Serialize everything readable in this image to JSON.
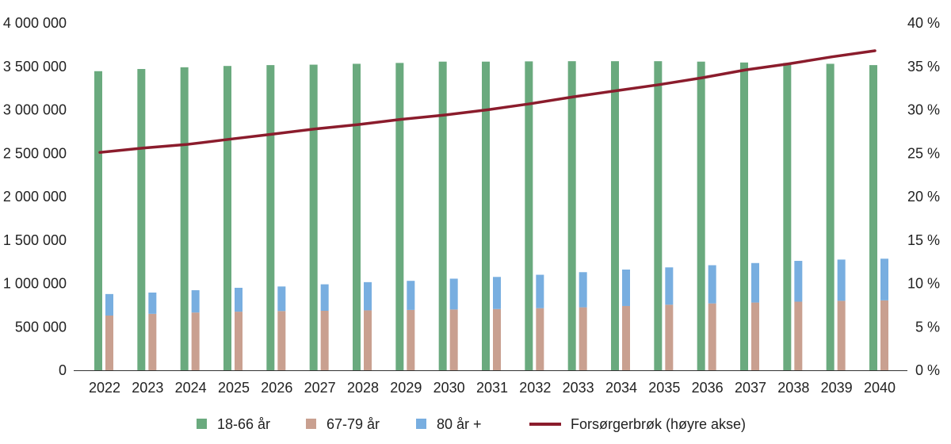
{
  "chart_data": {
    "type": "bar",
    "title": "",
    "xlabel": "",
    "ylabel": "",
    "categories": [
      "2022",
      "2023",
      "2024",
      "2025",
      "2026",
      "2027",
      "2028",
      "2029",
      "2030",
      "2031",
      "2032",
      "2033",
      "2034",
      "2035",
      "2036",
      "2037",
      "2038",
      "2039",
      "2040"
    ],
    "y_left": {
      "min": 0,
      "max": 4000000,
      "step": 500000,
      "tick_labels": [
        "0",
        "500 000",
        "1 000 000",
        "1 500 000",
        "2 000 000",
        "2 500 000",
        "3 000 000",
        "3 500 000",
        "4 000 000"
      ]
    },
    "y_right": {
      "min": 0,
      "max": 40,
      "step": 5,
      "tick_labels": [
        "0 %",
        "5 %",
        "10 %",
        "15 %",
        "20 %",
        "25 %",
        "30 %",
        "35 %",
        "40 %"
      ]
    },
    "grid": false,
    "legend_position": "bottom",
    "series": [
      {
        "name": "18-66 år",
        "type": "bar",
        "axis": "left",
        "color": "#6aaa7e",
        "values": [
          3445000,
          3470000,
          3490000,
          3505000,
          3515000,
          3520000,
          3530000,
          3540000,
          3555000,
          3555000,
          3558000,
          3560000,
          3560000,
          3560000,
          3555000,
          3545000,
          3540000,
          3530000,
          3515000
        ]
      },
      {
        "name": "67-79 år",
        "type": "stacked-bar",
        "stack": "elderly",
        "axis": "left",
        "color": "#c9a090",
        "values": [
          630000,
          650000,
          665000,
          675000,
          682000,
          685000,
          690000,
          695000,
          700000,
          705000,
          715000,
          725000,
          740000,
          755000,
          770000,
          780000,
          790000,
          800000,
          805000
        ]
      },
      {
        "name": "80 år +",
        "type": "stacked-bar",
        "stack": "elderly",
        "axis": "left",
        "color": "#78aee0",
        "values": [
          248000,
          245000,
          257000,
          275000,
          283000,
          305000,
          325000,
          335000,
          355000,
          370000,
          385000,
          405000,
          420000,
          430000,
          440000,
          455000,
          470000,
          475000,
          480000
        ]
      },
      {
        "name": "Forsørgerbrøk (høyre akse)",
        "type": "line",
        "axis": "right",
        "color": "#8b1c2c",
        "values": [
          25.1,
          25.6,
          26.0,
          26.6,
          27.2,
          27.8,
          28.3,
          28.9,
          29.4,
          30.0,
          30.7,
          31.5,
          32.2,
          32.9,
          33.7,
          34.6,
          35.3,
          36.1,
          36.8
        ]
      }
    ]
  }
}
